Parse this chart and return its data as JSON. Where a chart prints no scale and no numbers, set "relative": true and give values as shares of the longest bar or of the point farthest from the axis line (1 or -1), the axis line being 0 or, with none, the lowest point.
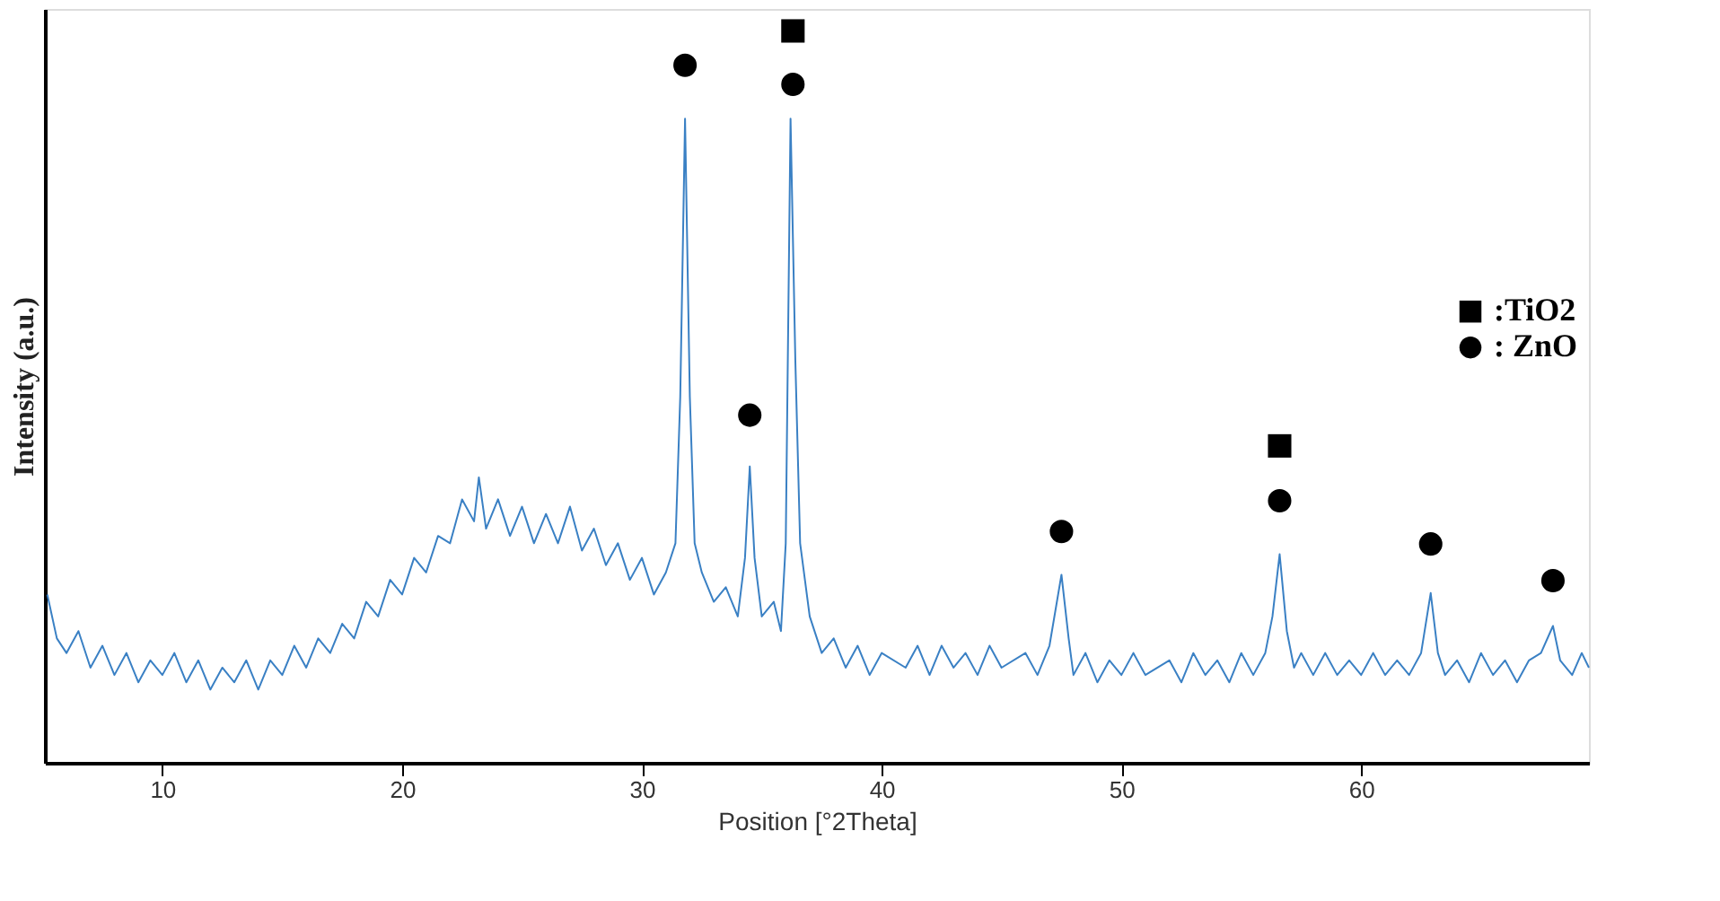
{
  "chart_data": {
    "type": "line",
    "xlabel": "Position [°2Theta]",
    "ylabel": "Intensity (a.u.)",
    "relative": true,
    "xlim": [
      5.1,
      69.5
    ],
    "xticks": [
      10,
      20,
      30,
      40,
      50,
      60
    ],
    "grid": false,
    "legend": "right",
    "series": [
      {
        "color": "#3a80c4",
        "marker": "none",
        "line_style": "solid",
        "x": [
          5.2,
          5.6,
          6,
          6.5,
          7,
          7.5,
          8,
          8.5,
          9,
          9.5,
          10,
          10.5,
          11,
          11.5,
          12,
          12.5,
          13,
          13.5,
          14,
          14.5,
          15,
          15.5,
          16,
          16.5,
          17,
          17.5,
          18,
          18.5,
          19,
          19.5,
          20,
          20.5,
          21,
          21.5,
          22,
          22.5,
          23,
          23.2,
          23.5,
          24,
          24.5,
          25,
          25.5,
          26,
          26.5,
          27,
          27.5,
          28,
          28.5,
          29,
          29.5,
          30,
          30.5,
          31,
          31.4,
          31.6,
          31.8,
          32,
          32.2,
          32.5,
          33,
          33.5,
          34,
          34.3,
          34.5,
          34.7,
          35,
          35.5,
          35.8,
          36,
          36.2,
          36.4,
          36.6,
          37,
          37.5,
          38,
          38.5,
          39,
          39.5,
          40,
          41,
          41.5,
          42,
          42.5,
          43,
          43.5,
          44,
          44.5,
          45,
          46,
          46.5,
          47,
          47.5,
          47.8,
          48,
          48.5,
          49,
          49.5,
          50,
          50.5,
          51,
          52,
          52.5,
          53,
          53.5,
          54,
          54.5,
          55,
          55.5,
          56,
          56.3,
          56.6,
          56.9,
          57.2,
          57.5,
          58,
          58.5,
          59,
          59.5,
          60,
          60.5,
          61,
          61.5,
          62,
          62.5,
          62.9,
          63.2,
          63.5,
          64,
          64.5,
          65,
          65.5,
          66,
          66.5,
          67,
          67.5,
          68,
          68.3,
          68.8,
          69.2,
          69.5
        ],
        "values": [
          0.23,
          0.17,
          0.15,
          0.18,
          0.13,
          0.16,
          0.12,
          0.15,
          0.11,
          0.14,
          0.12,
          0.15,
          0.11,
          0.14,
          0.1,
          0.13,
          0.11,
          0.14,
          0.1,
          0.14,
          0.12,
          0.16,
          0.13,
          0.17,
          0.15,
          0.19,
          0.17,
          0.22,
          0.2,
          0.25,
          0.23,
          0.28,
          0.26,
          0.31,
          0.3,
          0.36,
          0.33,
          0.39,
          0.32,
          0.36,
          0.31,
          0.35,
          0.3,
          0.34,
          0.3,
          0.35,
          0.29,
          0.32,
          0.27,
          0.3,
          0.25,
          0.28,
          0.23,
          0.26,
          0.3,
          0.5,
          0.88,
          0.5,
          0.3,
          0.26,
          0.22,
          0.24,
          0.2,
          0.28,
          0.405,
          0.28,
          0.2,
          0.22,
          0.18,
          0.3,
          0.88,
          0.55,
          0.3,
          0.2,
          0.15,
          0.17,
          0.13,
          0.16,
          0.12,
          0.15,
          0.13,
          0.16,
          0.12,
          0.16,
          0.13,
          0.15,
          0.12,
          0.16,
          0.13,
          0.15,
          0.12,
          0.16,
          0.257,
          0.17,
          0.12,
          0.15,
          0.11,
          0.14,
          0.12,
          0.15,
          0.12,
          0.14,
          0.11,
          0.15,
          0.12,
          0.14,
          0.11,
          0.15,
          0.12,
          0.15,
          0.2,
          0.285,
          0.18,
          0.13,
          0.15,
          0.12,
          0.15,
          0.12,
          0.14,
          0.12,
          0.15,
          0.12,
          0.14,
          0.12,
          0.15,
          0.232,
          0.15,
          0.12,
          0.14,
          0.11,
          0.15,
          0.12,
          0.14,
          0.11,
          0.14,
          0.15,
          0.187,
          0.14,
          0.12,
          0.15,
          0.13
        ]
      },
      {
        "type": "scatter",
        "name": ":TiO2",
        "color": "#000000",
        "marker": "square",
        "x": [
          36.3,
          56.6
        ],
        "values": [
          1.0,
          0.433
        ]
      },
      {
        "type": "scatter",
        "name": ": ZnO",
        "color": "#000000",
        "marker": "circle",
        "x": [
          31.8,
          34.5,
          36.3,
          47.5,
          56.6,
          62.9,
          68.0
        ],
        "values": [
          0.953,
          0.475,
          0.927,
          0.316,
          0.358,
          0.299,
          0.249
        ]
      }
    ]
  }
}
